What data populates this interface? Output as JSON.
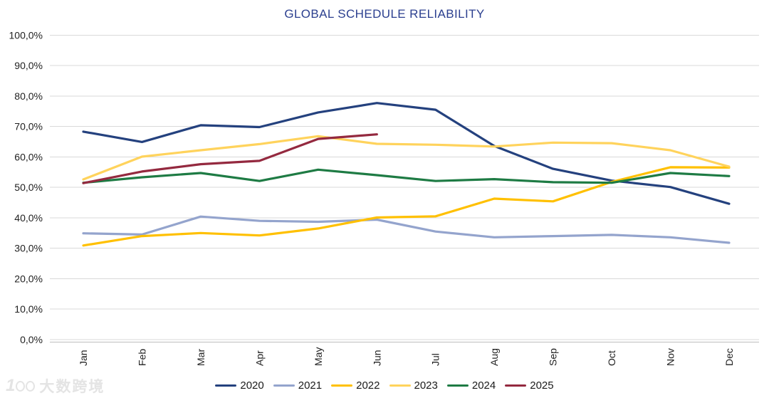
{
  "title": "GLOBAL SCHEDULE RELIABILITY",
  "watermark": {
    "logo_number": "1",
    "text": "大数跨境"
  },
  "chart_data": {
    "type": "line",
    "title": "GLOBAL SCHEDULE RELIABILITY",
    "xlabel": "",
    "ylabel": "",
    "ylim": [
      0,
      100
    ],
    "grid": "horizontal",
    "legend_position": "bottom",
    "y_ticks": [
      "100,0%",
      "90,0%",
      "80,0%",
      "70,0%",
      "60,0%",
      "50,0%",
      "40,0%",
      "30,0%",
      "20,0%",
      "10,0%",
      "0,0%"
    ],
    "categories": [
      "Jan",
      "Feb",
      "Mar",
      "Apr",
      "May",
      "Jun",
      "Jul",
      "Aug",
      "Sep",
      "Oct",
      "Nov",
      "Dec"
    ],
    "series": [
      {
        "name": "2020",
        "color": "#24417E",
        "values": [
          68.3,
          64.9,
          70.4,
          69.8,
          74.6,
          77.7,
          75.5,
          63.6,
          56.1,
          52.2,
          50.1,
          44.6
        ]
      },
      {
        "name": "2021",
        "color": "#94A4CD",
        "values": [
          34.9,
          34.5,
          40.4,
          39.0,
          38.7,
          39.4,
          35.5,
          33.6,
          34.0,
          34.4,
          33.6,
          31.8
        ]
      },
      {
        "name": "2022",
        "color": "#FFC000",
        "values": [
          30.9,
          34.0,
          35.0,
          34.2,
          36.5,
          40.1,
          40.5,
          46.3,
          45.4,
          51.8,
          56.6,
          56.5
        ]
      },
      {
        "name": "2023",
        "color": "#FFD35C",
        "values": [
          52.6,
          60.1,
          62.2,
          64.2,
          66.8,
          64.3,
          64.0,
          63.4,
          64.7,
          64.5,
          62.2,
          56.8
        ]
      },
      {
        "name": "2024",
        "color": "#1E7B44",
        "values": [
          51.5,
          53.3,
          54.7,
          52.1,
          55.8,
          54.0,
          52.1,
          52.7,
          51.7,
          51.5,
          54.7,
          53.7
        ]
      },
      {
        "name": "2025",
        "color": "#94293F",
        "values": [
          51.4,
          55.2,
          57.6,
          58.7,
          65.9,
          67.4
        ]
      }
    ],
    "style": {
      "grid_color": "#D9D9D9",
      "axis_color": "#BDBDBD",
      "tick_color": "#1f1f1f",
      "line_width": 3.2
    }
  }
}
